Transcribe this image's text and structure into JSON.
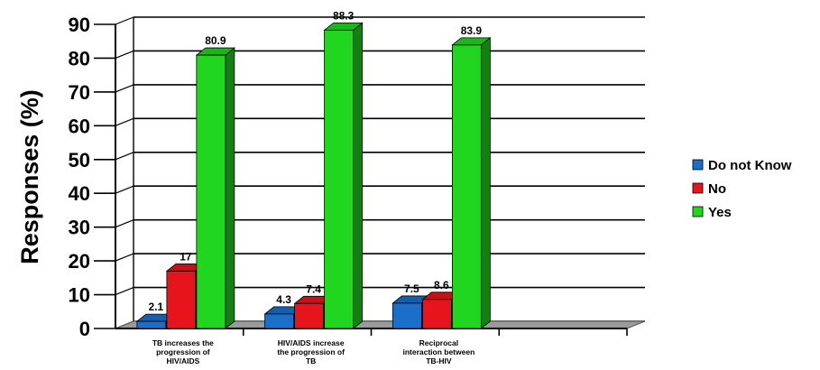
{
  "chart_data": {
    "type": "bar",
    "categories": [
      [
        "TB increases  the",
        "progression  of",
        "HIV/AIDS"
      ],
      [
        "HIV/AIDS increase",
        "the progression  of",
        "TB"
      ],
      [
        "Reciprocal",
        "interaction between",
        "TB-HIV"
      ]
    ],
    "series": [
      {
        "name": "Do not Know",
        "values": [
          2.1,
          4.3,
          7.5
        ],
        "labels": [
          "2.1",
          "4.3",
          "7.5"
        ]
      },
      {
        "name": "No",
        "values": [
          17,
          7.4,
          8.6
        ],
        "labels": [
          "17",
          "7.4",
          "8.6"
        ]
      },
      {
        "name": "Yes",
        "values": [
          80.9,
          88.3,
          83.9
        ],
        "labels": [
          "80.9",
          "88.3",
          "83.9"
        ]
      }
    ],
    "ylabel": "Responses (%)",
    "xlabel": "",
    "ylim": [
      0,
      90
    ],
    "yticks": [
      0,
      10,
      20,
      30,
      40,
      50,
      60,
      70,
      80,
      90
    ],
    "grid": true,
    "legend": "right",
    "colors": {
      "Do not Know": "#1a6fc9",
      "No": "#e8141c",
      "Yes": "#21d61f"
    }
  }
}
